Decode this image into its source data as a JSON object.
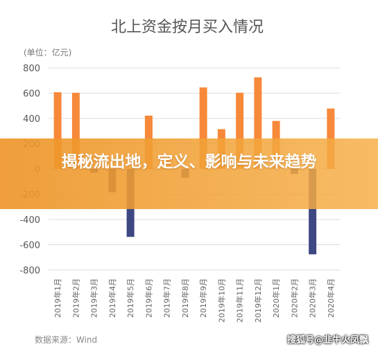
{
  "chart_data": {
    "type": "bar",
    "title": "北上资金按月买入情况",
    "unit_label": "(单位：亿元)",
    "categories": [
      "2019年1月",
      "2019年2月",
      "2019年3月",
      "2019年4月",
      "2019年5月",
      "2019年6月",
      "2019年7月",
      "2019年8月",
      "2019年9月",
      "2019年10月",
      "2019年11月",
      "2019年12月",
      "2020年1月",
      "2020年2月",
      "2020年3月",
      "2020年4月"
    ],
    "values": [
      607,
      603,
      -30,
      -185,
      -538,
      422,
      73,
      -70,
      645,
      315,
      603,
      725,
      380,
      -40,
      -676,
      478
    ],
    "ylim": [
      -800,
      800
    ],
    "yticks": [
      -800,
      -600,
      -400,
      -200,
      0,
      200,
      400,
      600,
      800
    ],
    "colors": {
      "positive": "#F7893A",
      "negative": "#3D4783"
    },
    "grid": true
  },
  "source_text": "数据来源：Wind",
  "banner": {
    "text": "揭秘流出地，定义、影响与未来趋势"
  },
  "watermark": "搜狐号@韭牛火凤飘"
}
